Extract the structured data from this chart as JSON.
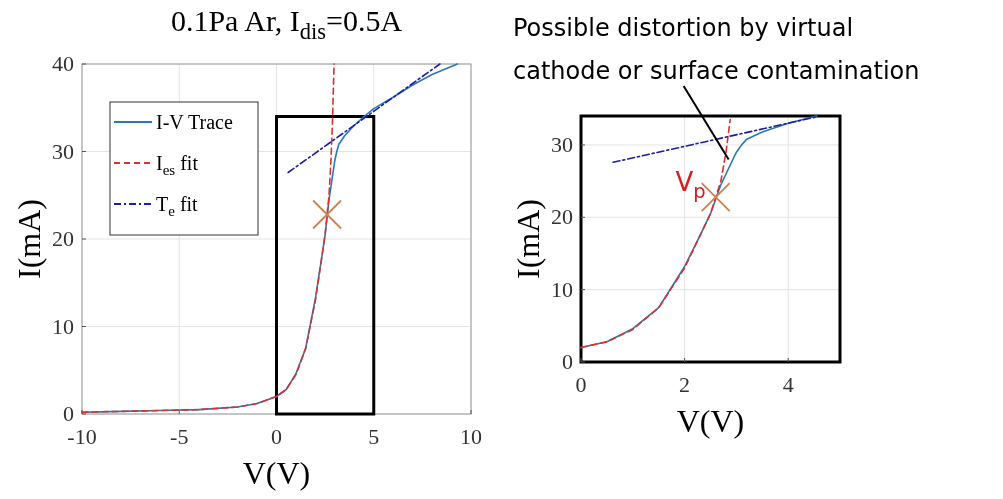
{
  "chart_data": [
    {
      "type": "line",
      "title": "0.1Pa Ar, I$_{dis}$=0.5A",
      "xlabel": "V(V)",
      "ylabel": "I(mA)",
      "xlim": [
        -10,
        10
      ],
      "ylim": [
        0,
        40
      ],
      "xticks": [
        -10,
        -5,
        0,
        5,
        10
      ],
      "yticks": [
        0,
        10,
        20,
        30,
        40
      ],
      "grid": true,
      "legend": "top left",
      "series": [
        {
          "name": "I-V Trace",
          "color": "#2a7ab0",
          "line_style": "solid",
          "x": [
            -10,
            -8,
            -6,
            -4,
            -2,
            -1,
            0,
            0.5,
            1,
            1.5,
            2,
            2.3,
            2.5,
            2.7,
            2.9,
            3.0,
            3.1,
            3.2,
            3.5,
            4.0,
            4.5,
            5,
            6,
            7,
            8,
            9.3
          ],
          "values": [
            0.2,
            0.3,
            0.4,
            0.5,
            0.8,
            1.2,
            2.0,
            2.8,
            4.6,
            7.5,
            13.2,
            17.5,
            20.5,
            24.5,
            27.5,
            29,
            30,
            30.8,
            31.8,
            33,
            34,
            34.9,
            36.2,
            37.6,
            38.8,
            40
          ]
        },
        {
          "name": "I$_{es}$ fit",
          "color": "#d93030",
          "line_style": "dashed",
          "x": [
            -10,
            -8,
            -6,
            -4,
            -2,
            -1,
            0,
            0.5,
            1,
            1.5,
            2,
            2.3,
            2.5,
            2.7,
            2.8,
            2.88,
            2.96
          ],
          "values": [
            0.2,
            0.3,
            0.4,
            0.5,
            0.8,
            1.2,
            2.0,
            2.8,
            4.5,
            7.5,
            13,
            17.5,
            20.5,
            25,
            29,
            33.5,
            40
          ]
        },
        {
          "name": "T$_{e}$ fit",
          "color": "#1c1ca8",
          "line_style": "dotted",
          "x": [
            0.6,
            8.4
          ],
          "values": [
            27.6,
            40
          ]
        },
        {
          "type": "scatter",
          "color": "#d08050",
          "marker": "cross",
          "x": [
            2.6
          ],
          "values": [
            22.8
          ]
        }
      ]
    },
    {
      "type": "line",
      "xlabel": "V(V)",
      "ylabel": "I(mA)",
      "xlim": [
        0,
        5
      ],
      "ylim": [
        0,
        34
      ],
      "xticks": [
        0,
        2,
        4
      ],
      "yticks": [
        0,
        10,
        20,
        30
      ],
      "grid": true,
      "annotations": [
        {
          "text": "Possible distortion by virtual cathode or surface contamination",
          "x": 2.85,
          "y": 28
        },
        {
          "text": "V$_{p}$",
          "x": 2.6,
          "y": 22.8
        }
      ],
      "series": [
        {
          "color": "#2a7ab0",
          "line_style": "solid",
          "x": [
            0,
            0.5,
            1,
            1.5,
            2,
            2.3,
            2.5,
            2.7,
            2.9,
            3.0,
            3.1,
            3.2,
            3.5,
            4.0,
            4.55
          ],
          "values": [
            2.0,
            2.8,
            4.6,
            7.5,
            13.2,
            17.5,
            20.5,
            24.5,
            27.5,
            29,
            30,
            30.8,
            31.8,
            33,
            34
          ]
        },
        {
          "color": "#d93030",
          "line_style": "dashed",
          "x": [
            0,
            0.5,
            1,
            1.5,
            2,
            2.3,
            2.5,
            2.7,
            2.8,
            2.88
          ],
          "values": [
            2.0,
            2.8,
            4.5,
            7.5,
            13,
            17.5,
            20.5,
            25,
            29,
            33.5
          ]
        },
        {
          "color": "#1c1ca8",
          "line_style": "dotted",
          "x": [
            0.62,
            4.56
          ],
          "values": [
            27.6,
            33.9
          ]
        },
        {
          "type": "scatter",
          "color": "#d08050",
          "marker": "cross",
          "x": [
            2.6
          ],
          "values": [
            22.8
          ]
        }
      ]
    }
  ]
}
